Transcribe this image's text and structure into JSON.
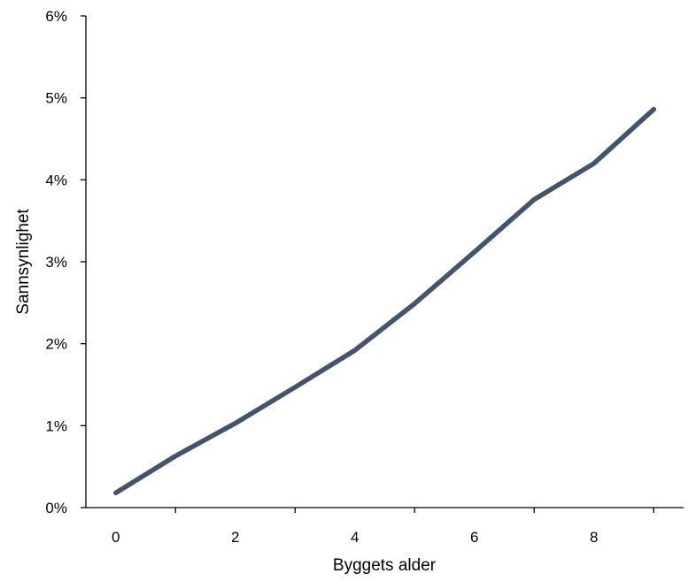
{
  "chart_data": {
    "type": "line",
    "title": "",
    "xlabel": "Byggets alder",
    "ylabel": "Sannsynlighet",
    "x_ticks": [
      "0",
      "2",
      "4",
      "6",
      "8"
    ],
    "y_ticks": [
      "0%",
      "1%",
      "2%",
      "3%",
      "4%",
      "5%",
      "6%"
    ],
    "xlim": [
      -0.5,
      9.5
    ],
    "ylim": [
      0,
      6
    ],
    "grid": false,
    "legend": "none",
    "series": [
      {
        "x": [
          0,
          1,
          2,
          3,
          4,
          5,
          6,
          7,
          8,
          9
        ],
        "y": [
          0.18,
          0.63,
          1.03,
          1.47,
          1.92,
          2.49,
          3.12,
          3.76,
          4.2,
          4.86
        ],
        "color": "#44546a"
      }
    ]
  }
}
